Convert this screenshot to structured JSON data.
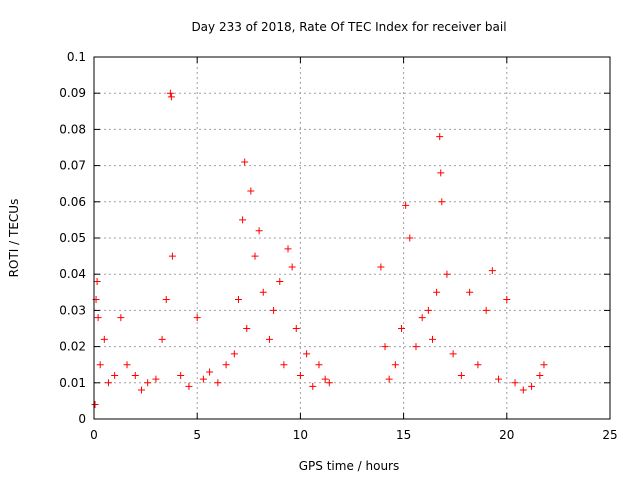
{
  "chart_data": {
    "type": "scatter",
    "title": "Day 233 of 2018, Rate Of TEC Index for receiver bail",
    "xlabel": "GPS time / hours",
    "ylabel": "ROTI / TECUs",
    "xlim": [
      0,
      25
    ],
    "ylim": [
      0,
      0.1
    ],
    "x_ticks": [
      0,
      5,
      10,
      15,
      20,
      25
    ],
    "x_tick_labels": [
      "0",
      "5",
      "10",
      "15",
      "20",
      "25"
    ],
    "y_ticks": [
      0,
      0.01,
      0.02,
      0.03,
      0.04,
      0.05,
      0.06,
      0.07,
      0.08,
      0.09,
      0.1
    ],
    "y_tick_labels": [
      "0",
      "0.01",
      "0.02",
      "0.03",
      "0.04",
      "0.05",
      "0.06",
      "0.07",
      "0.08",
      "0.09",
      "0.1"
    ],
    "grid": true,
    "marker": "+",
    "colors": {
      "series": "#ff0000",
      "grid": "#a0a0a0",
      "axis": "#000000"
    },
    "series": [
      {
        "name": "ROTI",
        "x": [
          0.05,
          0.1,
          0.15,
          0.2,
          0.3,
          0.5,
          0.7,
          1.0,
          1.3,
          1.6,
          2.0,
          2.3,
          2.6,
          3.0,
          3.3,
          3.5,
          3.7,
          3.75,
          3.8,
          4.2,
          4.6,
          5.0,
          5.3,
          5.6,
          6.0,
          6.4,
          6.8,
          7.0,
          7.2,
          7.3,
          7.4,
          7.6,
          7.8,
          8.0,
          8.2,
          8.5,
          8.7,
          9.0,
          9.2,
          9.4,
          9.6,
          9.8,
          10.0,
          10.3,
          10.6,
          10.9,
          11.2,
          11.4,
          13.9,
          14.1,
          14.3,
          14.6,
          14.9,
          15.1,
          15.3,
          15.6,
          15.9,
          16.2,
          16.4,
          16.6,
          16.75,
          16.8,
          16.85,
          17.1,
          17.4,
          17.8,
          18.2,
          18.6,
          19.0,
          19.3,
          19.6,
          20.0,
          20.4,
          20.8,
          21.2,
          21.6,
          21.8
        ],
        "y": [
          0.004,
          0.033,
          0.038,
          0.028,
          0.015,
          0.022,
          0.01,
          0.012,
          0.028,
          0.015,
          0.012,
          0.008,
          0.01,
          0.011,
          0.022,
          0.033,
          0.09,
          0.089,
          0.045,
          0.012,
          0.009,
          0.028,
          0.011,
          0.013,
          0.01,
          0.015,
          0.018,
          0.033,
          0.055,
          0.071,
          0.025,
          0.063,
          0.045,
          0.052,
          0.035,
          0.022,
          0.03,
          0.038,
          0.015,
          0.047,
          0.042,
          0.025,
          0.012,
          0.018,
          0.009,
          0.015,
          0.011,
          0.01,
          0.042,
          0.02,
          0.011,
          0.015,
          0.025,
          0.059,
          0.05,
          0.02,
          0.028,
          0.03,
          0.022,
          0.035,
          0.078,
          0.068,
          0.06,
          0.04,
          0.018,
          0.012,
          0.035,
          0.015,
          0.03,
          0.041,
          0.011,
          0.033,
          0.01,
          0.008,
          0.009,
          0.012,
          0.015
        ]
      }
    ]
  }
}
